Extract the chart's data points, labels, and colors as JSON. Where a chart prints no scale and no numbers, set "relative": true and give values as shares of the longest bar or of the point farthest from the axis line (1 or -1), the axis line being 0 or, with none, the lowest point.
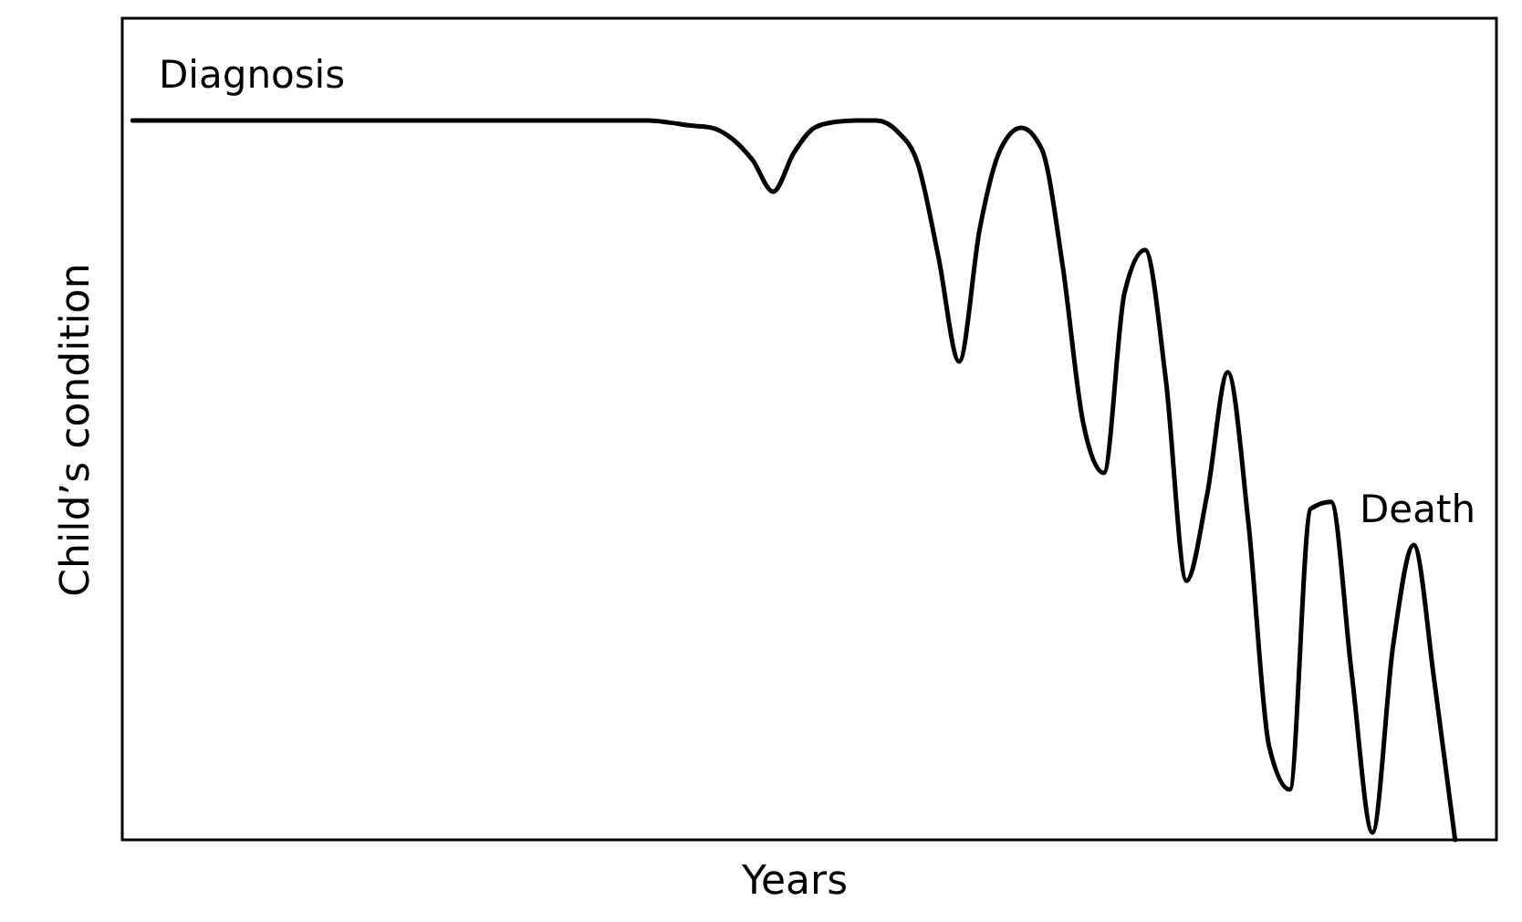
{
  "chart_data": {
    "type": "line",
    "relative": true,
    "xlabel": "Years",
    "ylabel": "Child’s condition",
    "annotations": [
      "Diagnosis",
      "Death"
    ],
    "categories": [
      null,
      null,
      null,
      null,
      null,
      null,
      null,
      null,
      null,
      null,
      null,
      null,
      null,
      null,
      null,
      null,
      null,
      null,
      null,
      null,
      null,
      null,
      null,
      null,
      null,
      null,
      null,
      null,
      null,
      null,
      null,
      null,
      null,
      null,
      null,
      null,
      null,
      null,
      null,
      null,
      null,
      null,
      null,
      null,
      null,
      null,
      null,
      null,
      null,
      null,
      null,
      null,
      null,
      null,
      null,
      null,
      null,
      null,
      null,
      null,
      null,
      null,
      null,
      null,
      null
    ],
    "series": [
      {
        "color": "#000000",
        "values": [
          1,
          1,
          1,
          1,
          1,
          1,
          1,
          1,
          1,
          1,
          1,
          1,
          1,
          1,
          1,
          1,
          1,
          1,
          1,
          1,
          1,
          1,
          1,
          1,
          1,
          1,
          0.997,
          0.993,
          0.99,
          0.975,
          0.945,
          0.901,
          0.955,
          0.99,
          0.998,
          1,
          1,
          0.985,
          0.94,
          0.81,
          0.665,
          0.85,
          0.96,
          0.99,
          0.96,
          0.8,
          0.58,
          0.51,
          0.76,
          0.82,
          0.64,
          0.36,
          0.48,
          0.65,
          0.44,
          0.13,
          0.07,
          0.46,
          0.47,
          0.23,
          0.01,
          0.27,
          0.41,
          0.22,
          0
        ]
      }
    ]
  }
}
